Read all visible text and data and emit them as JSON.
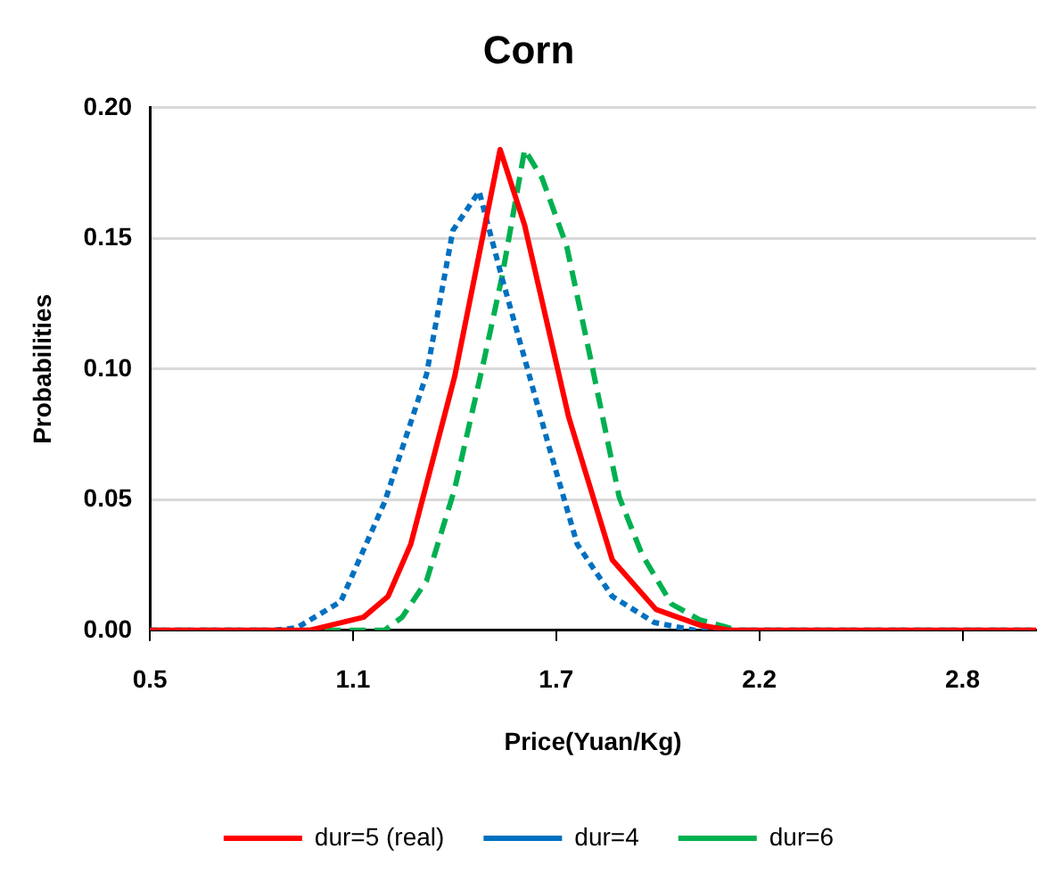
{
  "chart_data": {
    "type": "line",
    "title": "Corn",
    "xlabel": "Price(Yuan/Kg)",
    "ylabel": "Probabilities",
    "xlim": [
      0.5,
      3.03
    ],
    "xticks": [
      {
        "value": 0.5,
        "label": "0.5"
      },
      {
        "value": 1.08,
        "label": "1.1"
      },
      {
        "value": 1.66,
        "label": "1.7"
      },
      {
        "value": 2.24,
        "label": "2.2"
      },
      {
        "value": 2.82,
        "label": "2.8"
      }
    ],
    "ylim": [
      0,
      0.2
    ],
    "yticks": [
      {
        "value": 0,
        "label": "0.00"
      },
      0.05,
      {
        "value": 0.1,
        "label": "0.10"
      },
      0.15,
      {
        "value": 0.2,
        "label": "0.20"
      }
    ],
    "grid": "y",
    "legend": "bottom",
    "marker": "none",
    "series": [
      {
        "name": "dur=5 (real)",
        "color": "#ff0000",
        "line_style": "solid",
        "x": [
          0.5,
          0.955,
          1.11,
          1.18,
          1.245,
          1.37,
          1.5,
          1.57,
          1.695,
          1.82,
          1.945,
          2.07,
          2.155,
          3.03
        ],
        "values": [
          0,
          0,
          0.005,
          0.013,
          0.033,
          0.097,
          0.184,
          0.155,
          0.082,
          0.027,
          0.008,
          0.002,
          0,
          0
        ]
      },
      {
        "name": "dur=4",
        "color": "#0070c0",
        "line_style": "dotted",
        "x": [
          0.5,
          0.855,
          0.92,
          1.045,
          1.17,
          1.29,
          1.365,
          1.44,
          1.505,
          1.57,
          1.64,
          1.72,
          1.82,
          1.94,
          2.055,
          3.03
        ],
        "values": [
          0,
          0,
          0.001,
          0.011,
          0.049,
          0.098,
          0.153,
          0.168,
          0.135,
          0.104,
          0.07,
          0.033,
          0.013,
          0.003,
          0,
          0
        ]
      },
      {
        "name": "dur=6",
        "color": "#00b050",
        "line_style": "dashed",
        "x": [
          0.5,
          1.17,
          1.22,
          1.29,
          1.37,
          1.455,
          1.505,
          1.57,
          1.62,
          1.69,
          1.755,
          1.84,
          1.905,
          1.99,
          2.07,
          2.18,
          3.03
        ],
        "values": [
          0,
          0,
          0.005,
          0.019,
          0.054,
          0.104,
          0.135,
          0.184,
          0.173,
          0.147,
          0.106,
          0.051,
          0.029,
          0.01,
          0.004,
          0,
          0
        ]
      }
    ]
  }
}
